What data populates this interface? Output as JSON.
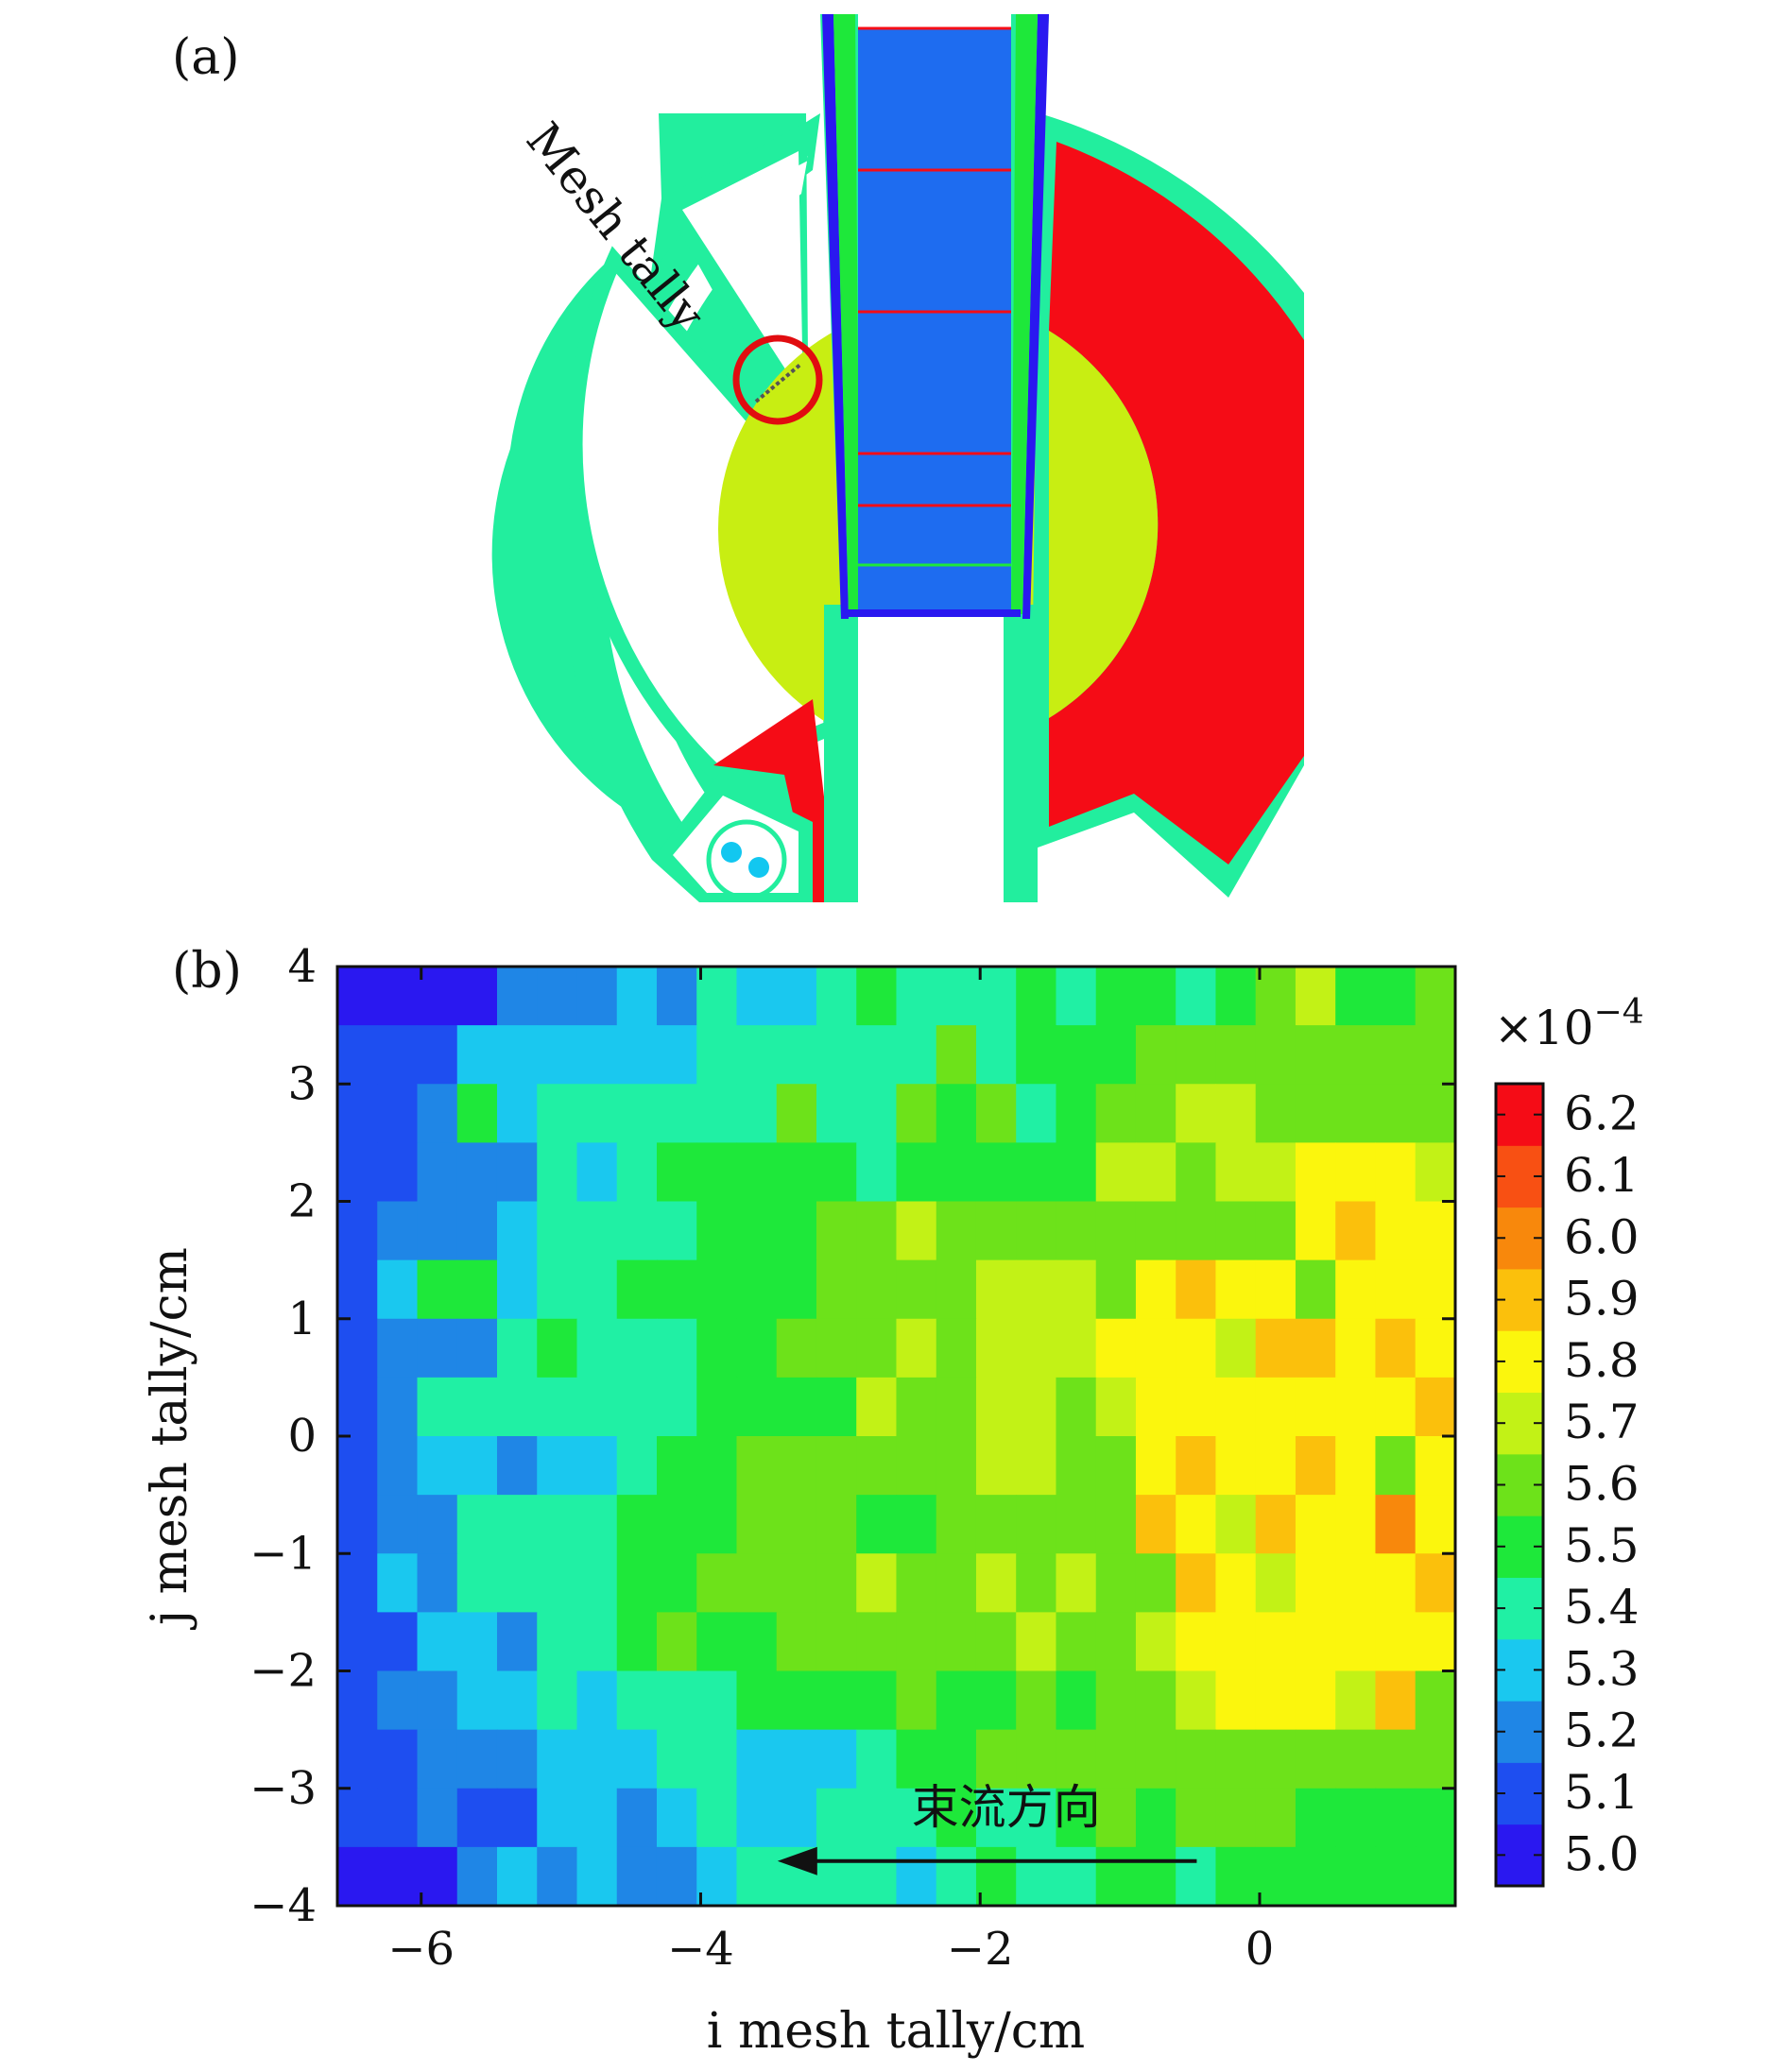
{
  "panel_a": {
    "label": "(a)",
    "mesh_label": "Mesh tally"
  },
  "panel_b": {
    "label": "(b)"
  },
  "chart_data": {
    "type": "heatmap",
    "xlabel": "i mesh tally/cm",
    "ylabel": "j mesh tally/cm",
    "xlim": [
      -6.6,
      1.4
    ],
    "ylim": [
      -4,
      4
    ],
    "x_ticks": [
      -6,
      -4,
      -2,
      0
    ],
    "y_ticks": [
      4,
      3,
      2,
      1,
      0,
      -1,
      -2,
      -3,
      -4
    ],
    "x_tick_labels": [
      "−6",
      "−4",
      "−2",
      "0"
    ],
    "y_tick_labels": [
      "4",
      "3",
      "2",
      "1",
      "0",
      "−1",
      "−2",
      "−3",
      "−4"
    ],
    "x_origin": -6.6,
    "x_step": 0.2857,
    "y_origin": 4,
    "y_step": -0.5,
    "colorbar": {
      "multiplier": "×10",
      "exponent": "−4",
      "levels": [
        4.95,
        5.0,
        5.05,
        5.1,
        5.15,
        5.2,
        5.25,
        5.3,
        5.35,
        5.4,
        5.45,
        5.5,
        5.55,
        5.6,
        5.65,
        5.7,
        5.75,
        5.8,
        5.85,
        5.9,
        5.95,
        6.0,
        6.05,
        6.1,
        6.15,
        6.2,
        6.25
      ],
      "colors": [
        "#2a18f0",
        "#1e4ef0",
        "#1f86e6",
        "#1ac8ef",
        "#20f0a4",
        "#1ee83a",
        "#6de21a",
        "#c2f216",
        "#fbf60d",
        "#fbc00c",
        "#f8880c",
        "#f85013",
        "#f50c16"
      ],
      "tick_values": [
        5.0,
        5.1,
        5.2,
        5.3,
        5.4,
        5.5,
        5.6,
        5.7,
        5.8,
        5.9,
        6.0,
        6.1,
        6.2
      ],
      "tick_labels": [
        "5.0",
        "5.1",
        "5.2",
        "5.3",
        "5.4",
        "5.5",
        "5.6",
        "5.7",
        "5.8",
        "5.9",
        "6.0",
        "6.1",
        "6.2"
      ]
    },
    "annotation": {
      "text": "束流方向",
      "arrow_from": [
        -0.45,
        -3.62
      ],
      "arrow_to": [
        -3.45,
        -3.62
      ]
    },
    "z": [
      [
        5.02,
        5.02,
        5.02,
        5.02,
        5.18,
        5.18,
        5.18,
        5.28,
        5.18,
        5.42,
        5.34,
        5.34,
        5.44,
        5.5,
        5.44,
        5.44,
        5.44,
        5.5,
        5.44,
        5.5,
        5.5,
        5.44,
        5.5,
        5.58,
        5.66,
        5.5,
        5.5,
        5.56
      ],
      [
        5.05,
        5.14,
        5.14,
        5.26,
        5.34,
        5.34,
        5.34,
        5.34,
        5.26,
        5.44,
        5.44,
        5.44,
        5.44,
        5.44,
        5.44,
        5.56,
        5.44,
        5.54,
        5.54,
        5.54,
        5.56,
        5.56,
        5.56,
        5.56,
        5.56,
        5.56,
        5.56,
        5.56
      ],
      [
        5.06,
        5.12,
        5.22,
        5.46,
        5.32,
        5.44,
        5.44,
        5.44,
        5.44,
        5.44,
        5.44,
        5.56,
        5.44,
        5.44,
        5.56,
        5.54,
        5.56,
        5.44,
        5.54,
        5.56,
        5.56,
        5.66,
        5.66,
        5.56,
        5.56,
        5.62,
        5.56,
        5.56
      ],
      [
        5.08,
        5.1,
        5.22,
        5.22,
        5.22,
        5.44,
        5.32,
        5.44,
        5.54,
        5.54,
        5.54,
        5.54,
        5.54,
        5.42,
        5.54,
        5.54,
        5.54,
        5.54,
        5.54,
        5.66,
        5.66,
        5.56,
        5.66,
        5.66,
        5.8,
        5.8,
        5.8,
        5.66
      ],
      [
        5.1,
        5.22,
        5.22,
        5.22,
        5.34,
        5.44,
        5.44,
        5.44,
        5.44,
        5.54,
        5.54,
        5.54,
        5.56,
        5.56,
        5.66,
        5.56,
        5.56,
        5.56,
        5.56,
        5.56,
        5.56,
        5.56,
        5.56,
        5.58,
        5.8,
        5.92,
        5.8,
        5.8
      ],
      [
        5.1,
        5.3,
        5.46,
        5.46,
        5.34,
        5.44,
        5.44,
        5.54,
        5.54,
        5.46,
        5.54,
        5.54,
        5.62,
        5.62,
        5.56,
        5.56,
        5.66,
        5.66,
        5.66,
        5.56,
        5.82,
        5.92,
        5.82,
        5.82,
        5.62,
        5.8,
        5.8,
        5.8
      ],
      [
        5.1,
        5.2,
        5.2,
        5.2,
        5.44,
        5.54,
        5.44,
        5.44,
        5.44,
        5.54,
        5.54,
        5.56,
        5.62,
        5.62,
        5.68,
        5.58,
        5.68,
        5.66,
        5.66,
        5.82,
        5.82,
        5.82,
        5.66,
        5.92,
        5.92,
        5.8,
        5.92,
        5.8
      ],
      [
        5.1,
        5.18,
        5.44,
        5.44,
        5.44,
        5.44,
        5.44,
        5.44,
        5.44,
        5.54,
        5.54,
        5.54,
        5.46,
        5.68,
        5.62,
        5.62,
        5.66,
        5.66,
        5.56,
        5.66,
        5.82,
        5.82,
        5.82,
        5.82,
        5.82,
        5.82,
        5.82,
        5.94
      ],
      [
        5.1,
        5.2,
        5.34,
        5.34,
        5.18,
        5.34,
        5.34,
        5.42,
        5.54,
        5.54,
        5.56,
        5.56,
        5.62,
        5.62,
        5.62,
        5.56,
        5.66,
        5.66,
        5.62,
        5.62,
        5.8,
        5.94,
        5.8,
        5.82,
        5.94,
        5.8,
        5.6,
        5.82
      ],
      [
        5.1,
        5.22,
        5.22,
        5.44,
        5.44,
        5.44,
        5.44,
        5.54,
        5.54,
        5.46,
        5.56,
        5.56,
        5.56,
        5.48,
        5.48,
        5.62,
        5.62,
        5.62,
        5.62,
        5.62,
        5.94,
        5.8,
        5.66,
        5.94,
        5.8,
        5.8,
        6.02,
        5.8
      ],
      [
        5.05,
        5.3,
        5.2,
        5.44,
        5.44,
        5.44,
        5.44,
        5.54,
        5.54,
        5.56,
        5.56,
        5.56,
        5.62,
        5.66,
        5.62,
        5.62,
        5.66,
        5.62,
        5.66,
        5.62,
        5.62,
        5.94,
        5.8,
        5.66,
        5.8,
        5.8,
        5.8,
        5.94
      ],
      [
        5.05,
        5.12,
        5.34,
        5.34,
        5.18,
        5.44,
        5.44,
        5.46,
        5.56,
        5.46,
        5.54,
        5.56,
        5.56,
        5.56,
        5.62,
        5.62,
        5.56,
        5.66,
        5.62,
        5.62,
        5.66,
        5.82,
        5.82,
        5.82,
        5.82,
        5.82,
        5.82,
        5.82
      ],
      [
        5.08,
        5.22,
        5.22,
        5.32,
        5.32,
        5.44,
        5.32,
        5.44,
        5.44,
        5.44,
        5.46,
        5.46,
        5.54,
        5.54,
        5.56,
        5.54,
        5.54,
        5.56,
        5.54,
        5.56,
        5.56,
        5.66,
        5.82,
        5.82,
        5.82,
        5.66,
        5.92,
        5.62
      ],
      [
        5.12,
        5.12,
        5.22,
        5.22,
        5.22,
        5.32,
        5.32,
        5.32,
        5.44,
        5.44,
        5.34,
        5.34,
        5.34,
        5.44,
        5.54,
        5.54,
        5.56,
        5.56,
        5.56,
        5.56,
        5.56,
        5.56,
        5.56,
        5.56,
        5.56,
        5.56,
        5.56,
        5.62
      ],
      [
        5.06,
        5.1,
        5.22,
        5.14,
        5.14,
        5.32,
        5.32,
        5.22,
        5.32,
        5.44,
        5.34,
        5.34,
        5.44,
        5.44,
        5.44,
        5.54,
        5.44,
        5.44,
        5.54,
        5.56,
        5.54,
        5.56,
        5.56,
        5.56,
        5.54,
        5.54,
        5.54,
        5.54
      ],
      [
        4.98,
        5.02,
        5.02,
        5.22,
        5.32,
        5.22,
        5.32,
        5.22,
        5.22,
        5.32,
        5.44,
        5.44,
        5.44,
        5.44,
        5.34,
        5.44,
        5.54,
        5.44,
        5.44,
        5.54,
        5.46,
        5.44,
        5.54,
        5.54,
        5.54,
        5.54,
        5.54,
        5.46
      ]
    ]
  }
}
